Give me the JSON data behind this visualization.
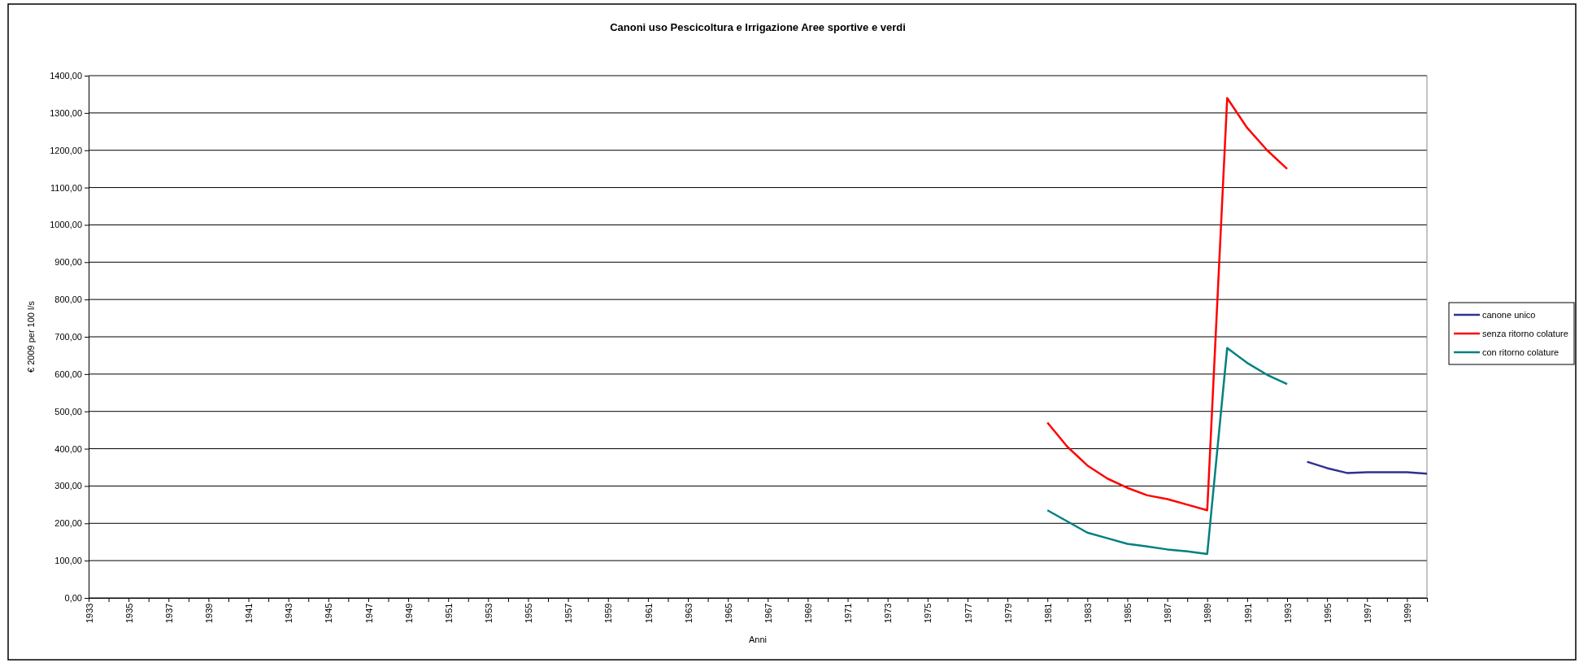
{
  "chart_data": {
    "type": "line",
    "title": "Canoni uso Pescicoltura e Irrigazione Aree sportive e verdi",
    "xlabel": "Anni",
    "ylabel": "€  2009 per 100 l/s",
    "categories": [
      "1933",
      null,
      "1935",
      null,
      "1937",
      null,
      "1939",
      null,
      "1941",
      null,
      "1943",
      null,
      "1945",
      null,
      "1947",
      null,
      "1949",
      null,
      "1951",
      null,
      "1953",
      null,
      "1955",
      null,
      "1957",
      null,
      "1959",
      null,
      "1961",
      null,
      "1963",
      null,
      "1965",
      null,
      "1967",
      null,
      "1969",
      null,
      "1971",
      null,
      "1973",
      null,
      "1975",
      null,
      "1977",
      null,
      "1979",
      null,
      "1981",
      null,
      "1983",
      null,
      "1985",
      null,
      "1987",
      null,
      "1989",
      null,
      "1991",
      null,
      "1993",
      null,
      "1995",
      null,
      "1997",
      null,
      "1999",
      null
    ],
    "series": [
      {
        "name": "canone unico",
        "color": "#2e3192",
        "values": [
          null,
          null,
          null,
          null,
          null,
          null,
          null,
          null,
          null,
          null,
          null,
          null,
          null,
          null,
          null,
          null,
          null,
          null,
          null,
          null,
          null,
          null,
          null,
          null,
          null,
          null,
          null,
          null,
          null,
          null,
          null,
          null,
          null,
          null,
          null,
          null,
          null,
          null,
          null,
          null,
          null,
          null,
          null,
          null,
          null,
          null,
          null,
          null,
          null,
          null,
          null,
          null,
          null,
          null,
          null,
          null,
          null,
          null,
          null,
          null,
          null,
          365,
          348,
          335,
          337,
          337,
          337,
          333
        ]
      },
      {
        "name": "senza ritorno colature",
        "color": "#ff0000",
        "values": [
          null,
          null,
          null,
          null,
          null,
          null,
          null,
          null,
          null,
          null,
          null,
          null,
          null,
          null,
          null,
          null,
          null,
          null,
          null,
          null,
          null,
          null,
          null,
          null,
          null,
          null,
          null,
          null,
          null,
          null,
          null,
          null,
          null,
          null,
          null,
          null,
          null,
          null,
          null,
          null,
          null,
          null,
          null,
          null,
          null,
          null,
          null,
          null,
          470,
          405,
          355,
          320,
          295,
          275,
          265,
          250,
          235,
          1340,
          1260,
          1200,
          1150,
          null,
          null,
          null,
          null,
          null,
          null,
          null
        ]
      },
      {
        "name": "con ritorno colature",
        "color": "#008080",
        "values": [
          null,
          null,
          null,
          null,
          null,
          null,
          null,
          null,
          null,
          null,
          null,
          null,
          null,
          null,
          null,
          null,
          null,
          null,
          null,
          null,
          null,
          null,
          null,
          null,
          null,
          null,
          null,
          null,
          null,
          null,
          null,
          null,
          null,
          null,
          null,
          null,
          null,
          null,
          null,
          null,
          null,
          null,
          null,
          null,
          null,
          null,
          null,
          null,
          235,
          205,
          175,
          160,
          145,
          138,
          130,
          125,
          118,
          670,
          630,
          598,
          573,
          null,
          null,
          null,
          null,
          null,
          null,
          null
        ]
      }
    ],
    "ylim": [
      0,
      1400
    ],
    "yticks": [
      {
        "value": 0,
        "label": "0,00"
      },
      {
        "value": 100,
        "label": "100,00"
      },
      {
        "value": 200,
        "label": "200,00"
      },
      {
        "value": 300,
        "label": "300,00"
      },
      {
        "value": 400,
        "label": "400,00"
      },
      {
        "value": 500,
        "label": "500,00"
      },
      {
        "value": 600,
        "label": "600,00"
      },
      {
        "value": 700,
        "label": "700,00"
      },
      {
        "value": 800,
        "label": "800,00"
      },
      {
        "value": 900,
        "label": "900,00"
      },
      {
        "value": 1000,
        "label": "1000,00"
      },
      {
        "value": 1100,
        "label": "1100,00"
      },
      {
        "value": 1200,
        "label": "1200,00"
      },
      {
        "value": 1300,
        "label": "1300,00"
      },
      {
        "value": 1400,
        "label": "1400,00"
      }
    ],
    "grid": "y",
    "legend": "right",
    "marker": "none",
    "line_style": "solid"
  }
}
